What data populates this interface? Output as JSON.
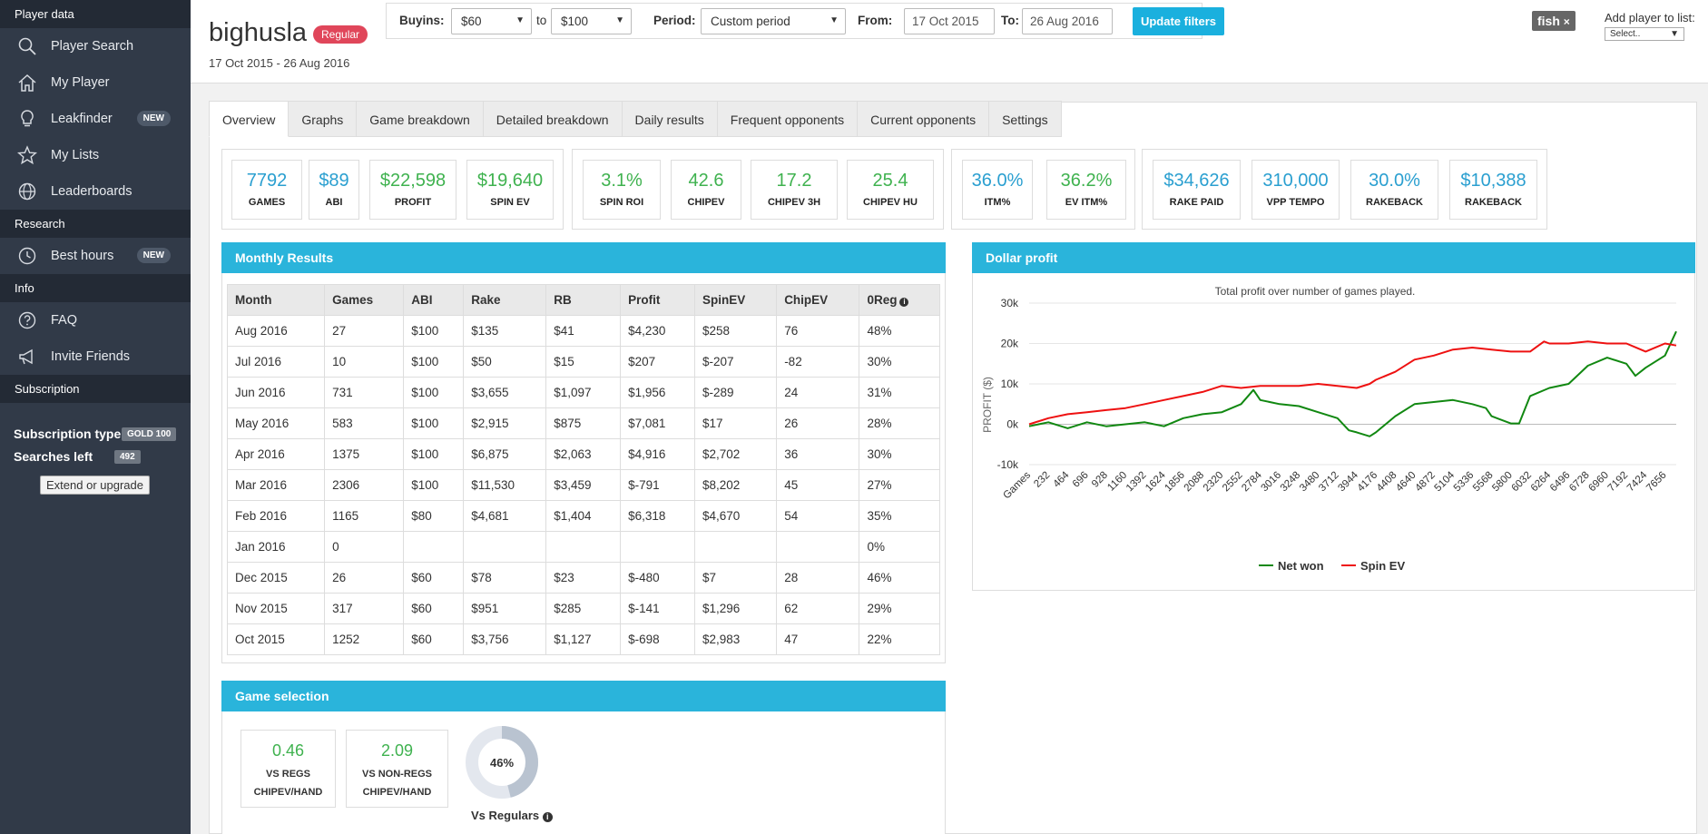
{
  "sidebar": {
    "sections": {
      "player_data": "Player data",
      "research": "Research",
      "info": "Info",
      "subscription": "Subscription"
    },
    "items": [
      {
        "label": "Player Search",
        "icon": "search-icon"
      },
      {
        "label": "My Player",
        "icon": "home-icon"
      },
      {
        "label": "Leakfinder",
        "icon": "bulb-icon",
        "badge": "NEW"
      },
      {
        "label": "My Lists",
        "icon": "star-icon"
      },
      {
        "label": "Leaderboards",
        "icon": "globe-icon"
      },
      {
        "label": "Best hours",
        "icon": "clock-icon",
        "badge": "NEW"
      },
      {
        "label": "FAQ",
        "icon": "question-icon"
      },
      {
        "label": "Invite Friends",
        "icon": "megaphone-icon"
      }
    ],
    "subscription_type_label": "Subscription type",
    "subscription_type_value": "GOLD 100",
    "searches_left_label": "Searches left",
    "searches_left_value": "492",
    "extend_label": "Extend or upgrade"
  },
  "header": {
    "player_name": "bighusla",
    "player_badge": "Regular",
    "date_range": "17 Oct 2015 - 26 Aug 2016",
    "filters": {
      "buyins_label": "Buyins:",
      "buyin_from": "$60",
      "to_label": "to",
      "buyin_to": "$100",
      "period_label": "Period:",
      "period_value": "Custom period",
      "from_label": "From:",
      "from_value": "17 Oct 2015",
      "to2_label": "To:",
      "to_value": "26 Aug 2016",
      "update_label": "Update filters"
    },
    "tag": "fish",
    "tag_close": "×",
    "add_list_label": "Add player to list:",
    "add_list_value": "Select.."
  },
  "tabs": [
    "Overview",
    "Graphs",
    "Game breakdown",
    "Detailed breakdown",
    "Daily results",
    "Frequent opponents",
    "Current opponents",
    "Settings"
  ],
  "stats": {
    "games": {
      "value": "7792",
      "label": "GAMES"
    },
    "abi": {
      "value": "$89",
      "label": "ABI"
    },
    "profit": {
      "value": "$22,598",
      "label": "PROFIT"
    },
    "spin_ev": {
      "value": "$19,640",
      "label": "SPIN EV"
    },
    "spin_roi": {
      "value": "3.1%",
      "label": "SPIN ROI"
    },
    "chipev": {
      "value": "42.6",
      "label": "CHIPEV"
    },
    "chipev_3h": {
      "value": "17.2",
      "label": "CHIPEV 3H"
    },
    "chipev_hu": {
      "value": "25.4",
      "label": "CHIPEV HU"
    },
    "itm": {
      "value": "36.0%",
      "label": "ITM%"
    },
    "ev_itm": {
      "value": "36.2%",
      "label": "EV ITM%"
    },
    "rake_paid": {
      "value": "$34,626",
      "label": "RAKE PAID"
    },
    "vpp_tempo": {
      "value": "310,000",
      "label": "VPP TEMPO"
    },
    "rakeback_pct": {
      "value": "30.0%",
      "label": "RAKEBACK"
    },
    "rakeback_amt": {
      "value": "$10,388",
      "label": "RAKEBACK"
    }
  },
  "monthly": {
    "title": "Monthly Results",
    "columns": [
      "Month",
      "Games",
      "ABI",
      "Rake",
      "RB",
      "Profit",
      "SpinEV",
      "ChipEV",
      "0Reg"
    ],
    "rows": [
      [
        "Aug 2016",
        "27",
        "$100",
        "$135",
        "$41",
        "$4,230",
        "$258",
        "76",
        "48%"
      ],
      [
        "Jul 2016",
        "10",
        "$100",
        "$50",
        "$15",
        "$207",
        "$-207",
        "-82",
        "30%"
      ],
      [
        "Jun 2016",
        "731",
        "$100",
        "$3,655",
        "$1,097",
        "$1,956",
        "$-289",
        "24",
        "31%"
      ],
      [
        "May 2016",
        "583",
        "$100",
        "$2,915",
        "$875",
        "$7,081",
        "$17",
        "26",
        "28%"
      ],
      [
        "Apr 2016",
        "1375",
        "$100",
        "$6,875",
        "$2,063",
        "$4,916",
        "$2,702",
        "36",
        "30%"
      ],
      [
        "Mar 2016",
        "2306",
        "$100",
        "$11,530",
        "$3,459",
        "$-791",
        "$8,202",
        "45",
        "27%"
      ],
      [
        "Feb 2016",
        "1165",
        "$80",
        "$4,681",
        "$1,404",
        "$6,318",
        "$4,670",
        "54",
        "35%"
      ],
      [
        "Jan 2016",
        "0",
        "",
        "",
        "",
        "",
        "",
        "",
        "0%"
      ],
      [
        "Dec 2015",
        "26",
        "$60",
        "$78",
        "$23",
        "$-480",
        "$7",
        "28",
        "46%"
      ],
      [
        "Nov 2015",
        "317",
        "$60",
        "$951",
        "$285",
        "$-141",
        "$1,296",
        "62",
        "29%"
      ],
      [
        "Oct 2015",
        "1252",
        "$60",
        "$3,756",
        "$1,127",
        "$-698",
        "$2,983",
        "47",
        "22%"
      ]
    ]
  },
  "game_selection": {
    "title": "Game selection",
    "vs_regs": {
      "value": "0.46",
      "label1": "VS REGS",
      "label2": "CHIPEV/HAND"
    },
    "vs_nonregs": {
      "value": "2.09",
      "label1": "VS NON-REGS",
      "label2": "CHIPEV/HAND"
    },
    "donut_percent": 46,
    "donut_label": "46%",
    "donut_caption": "Vs Regulars"
  },
  "colors": {
    "accent": "#2ab4db",
    "button": "#1ab0de",
    "badge": "#e0465a",
    "net_won": "#118811",
    "spin_ev": "#ee1111",
    "green_stat": "#3fb24f",
    "blue_stat": "#2a9fd0"
  },
  "chart_data": {
    "type": "line",
    "title": "Dollar profit",
    "subtitle": "Total profit over number of games played.",
    "xlabel": "Games",
    "ylabel": "PROFIT ($)",
    "ylim": [
      -10000,
      30000
    ],
    "yticks": [
      -10000,
      0,
      10000,
      20000,
      30000
    ],
    "ytick_labels": [
      "-10k",
      "0k",
      "10k",
      "20k",
      "30k"
    ],
    "xticks": [
      "Games",
      "232",
      "464",
      "696",
      "928",
      "1160",
      "1392",
      "1624",
      "1856",
      "2088",
      "2320",
      "2552",
      "2784",
      "3016",
      "3248",
      "3480",
      "3712",
      "3944",
      "4176",
      "4408",
      "4640",
      "4872",
      "5104",
      "5336",
      "5568",
      "5800",
      "6032",
      "6264",
      "6496",
      "6728",
      "6960",
      "7192",
      "7424",
      "7656"
    ],
    "xmax": 7792,
    "legend_position": "bottom",
    "series": [
      {
        "name": "Net won",
        "x": [
          0,
          232,
          464,
          696,
          928,
          1160,
          1392,
          1624,
          1856,
          2088,
          2320,
          2552,
          2700,
          2784,
          3016,
          3248,
          3480,
          3712,
          3850,
          3944,
          4100,
          4176,
          4408,
          4640,
          4872,
          5104,
          5336,
          5500,
          5568,
          5800,
          5900,
          6032,
          6264,
          6496,
          6728,
          6960,
          7192,
          7300,
          7424,
          7656,
          7792
        ],
        "y": [
          -500,
          500,
          -1000,
          500,
          -500,
          0,
          500,
          -500,
          1500,
          2500,
          3000,
          5000,
          8500,
          6000,
          5000,
          4500,
          3000,
          1500,
          -1500,
          -2000,
          -3000,
          -2000,
          2000,
          5000,
          5500,
          6000,
          5000,
          4000,
          2000,
          200,
          200,
          7000,
          9000,
          10000,
          14500,
          16500,
          15000,
          12000,
          14000,
          17000,
          23000
        ]
      },
      {
        "name": "Spin EV",
        "x": [
          0,
          232,
          464,
          696,
          928,
          1160,
          1392,
          1624,
          1856,
          2088,
          2320,
          2552,
          2784,
          3016,
          3248,
          3480,
          3712,
          3944,
          4100,
          4176,
          4408,
          4640,
          4872,
          5104,
          5336,
          5568,
          5800,
          6032,
          6200,
          6264,
          6496,
          6728,
          6960,
          7192,
          7424,
          7656,
          7792
        ],
        "y": [
          0,
          1500,
          2500,
          3000,
          3500,
          4000,
          5000,
          6000,
          7000,
          8000,
          9500,
          9000,
          9500,
          9500,
          9500,
          10000,
          9500,
          9000,
          10000,
          11000,
          13000,
          16000,
          17000,
          18500,
          19000,
          18500,
          18000,
          18000,
          20500,
          20000,
          20000,
          20500,
          20000,
          20000,
          18000,
          20000,
          19500
        ]
      }
    ]
  }
}
